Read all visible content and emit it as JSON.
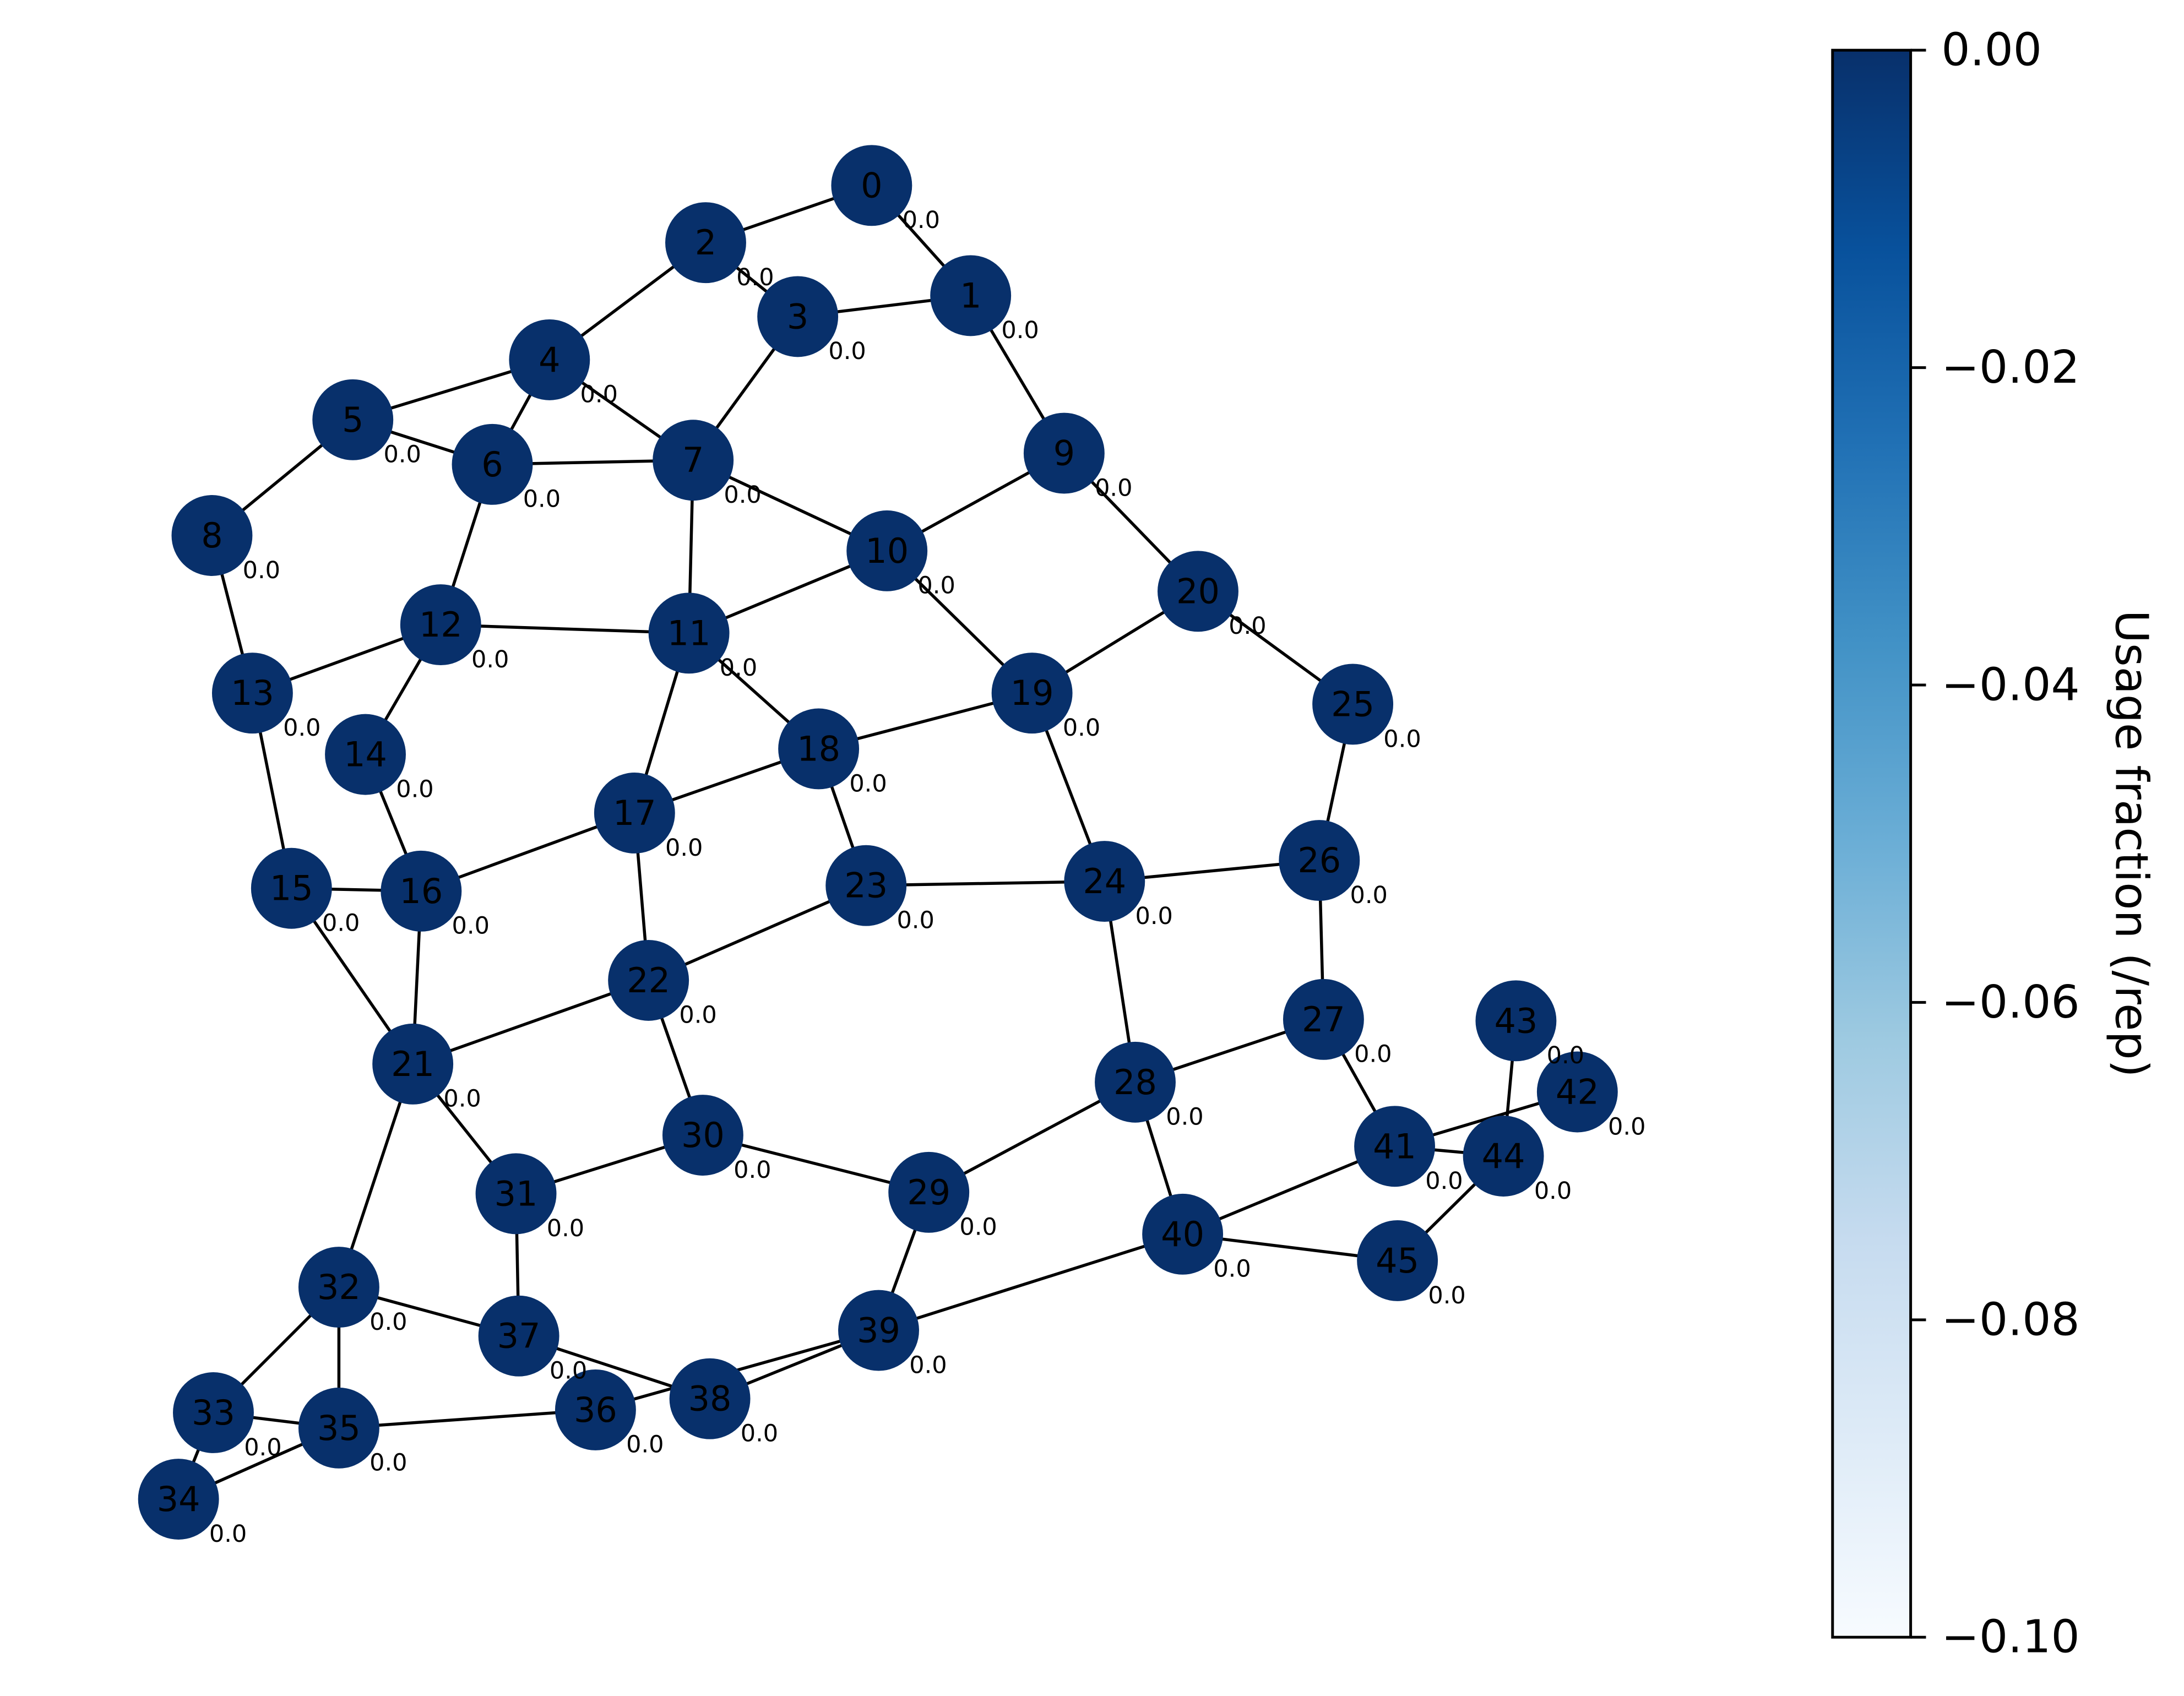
{
  "graph": {
    "node_color": "#08306b",
    "edge_color": "#000000",
    "nodes": [
      {
        "id": "0",
        "value": "0.0"
      },
      {
        "id": "1",
        "value": "0.0"
      },
      {
        "id": "2",
        "value": "0.0"
      },
      {
        "id": "3",
        "value": "0.0"
      },
      {
        "id": "4",
        "value": "0.0"
      },
      {
        "id": "5",
        "value": "0.0"
      },
      {
        "id": "6",
        "value": "0.0"
      },
      {
        "id": "7",
        "value": "0.0"
      },
      {
        "id": "8",
        "value": "0.0"
      },
      {
        "id": "9",
        "value": "0.0"
      },
      {
        "id": "10",
        "value": "0.0"
      },
      {
        "id": "11",
        "value": "0.0"
      },
      {
        "id": "12",
        "value": "0.0"
      },
      {
        "id": "13",
        "value": "0.0"
      },
      {
        "id": "14",
        "value": "0.0"
      },
      {
        "id": "15",
        "value": "0.0"
      },
      {
        "id": "16",
        "value": "0.0"
      },
      {
        "id": "17",
        "value": "0.0"
      },
      {
        "id": "18",
        "value": "0.0"
      },
      {
        "id": "19",
        "value": "0.0"
      },
      {
        "id": "20",
        "value": "0.0"
      },
      {
        "id": "21",
        "value": "0.0"
      },
      {
        "id": "22",
        "value": "0.0"
      },
      {
        "id": "23",
        "value": "0.0"
      },
      {
        "id": "24",
        "value": "0.0"
      },
      {
        "id": "25",
        "value": "0.0"
      },
      {
        "id": "26",
        "value": "0.0"
      },
      {
        "id": "27",
        "value": "0.0"
      },
      {
        "id": "28",
        "value": "0.0"
      },
      {
        "id": "29",
        "value": "0.0"
      },
      {
        "id": "30",
        "value": "0.0"
      },
      {
        "id": "31",
        "value": "0.0"
      },
      {
        "id": "32",
        "value": "0.0"
      },
      {
        "id": "33",
        "value": "0.0"
      },
      {
        "id": "34",
        "value": "0.0"
      },
      {
        "id": "35",
        "value": "0.0"
      },
      {
        "id": "36",
        "value": "0.0"
      },
      {
        "id": "37",
        "value": "0.0"
      },
      {
        "id": "38",
        "value": "0.0"
      },
      {
        "id": "39",
        "value": "0.0"
      },
      {
        "id": "40",
        "value": "0.0"
      },
      {
        "id": "41",
        "value": "0.0"
      },
      {
        "id": "42",
        "value": "0.0"
      },
      {
        "id": "43",
        "value": "0.0"
      },
      {
        "id": "44",
        "value": "0.0"
      },
      {
        "id": "45",
        "value": "0.0"
      }
    ],
    "edges": [
      [
        "0",
        "2"
      ],
      [
        "0",
        "1"
      ],
      [
        "2",
        "3"
      ],
      [
        "3",
        "1"
      ],
      [
        "2",
        "4"
      ],
      [
        "1",
        "9"
      ],
      [
        "3",
        "7"
      ],
      [
        "4",
        "5"
      ],
      [
        "4",
        "6"
      ],
      [
        "4",
        "7"
      ],
      [
        "5",
        "6"
      ],
      [
        "5",
        "8"
      ],
      [
        "6",
        "7"
      ],
      [
        "6",
        "12"
      ],
      [
        "7",
        "11"
      ],
      [
        "7",
        "10"
      ],
      [
        "9",
        "10"
      ],
      [
        "9",
        "20"
      ],
      [
        "10",
        "11"
      ],
      [
        "10",
        "19"
      ],
      [
        "8",
        "13"
      ],
      [
        "12",
        "13"
      ],
      [
        "12",
        "11"
      ],
      [
        "12",
        "14"
      ],
      [
        "11",
        "18"
      ],
      [
        "11",
        "17"
      ],
      [
        "20",
        "19"
      ],
      [
        "20",
        "25"
      ],
      [
        "13",
        "15"
      ],
      [
        "14",
        "16"
      ],
      [
        "18",
        "19"
      ],
      [
        "18",
        "17"
      ],
      [
        "18",
        "23"
      ],
      [
        "19",
        "24"
      ],
      [
        "25",
        "26"
      ],
      [
        "15",
        "16"
      ],
      [
        "15",
        "21"
      ],
      [
        "16",
        "17"
      ],
      [
        "16",
        "21"
      ],
      [
        "17",
        "22"
      ],
      [
        "23",
        "24"
      ],
      [
        "24",
        "26"
      ],
      [
        "24",
        "28"
      ],
      [
        "26",
        "27"
      ],
      [
        "22",
        "23"
      ],
      [
        "21",
        "22"
      ],
      [
        "22",
        "30"
      ],
      [
        "27",
        "28"
      ],
      [
        "27",
        "41"
      ],
      [
        "43",
        "44"
      ],
      [
        "41",
        "42"
      ],
      [
        "41",
        "44"
      ],
      [
        "44",
        "45"
      ],
      [
        "28",
        "29"
      ],
      [
        "28",
        "40"
      ],
      [
        "21",
        "31"
      ],
      [
        "21",
        "32"
      ],
      [
        "30",
        "31"
      ],
      [
        "30",
        "29"
      ],
      [
        "29",
        "39"
      ],
      [
        "40",
        "41"
      ],
      [
        "40",
        "45"
      ],
      [
        "40",
        "39"
      ],
      [
        "31",
        "37"
      ],
      [
        "32",
        "37"
      ],
      [
        "32",
        "33"
      ],
      [
        "32",
        "35"
      ],
      [
        "37",
        "38"
      ],
      [
        "39",
        "38"
      ],
      [
        "39",
        "36"
      ],
      [
        "33",
        "35"
      ],
      [
        "33",
        "34"
      ],
      [
        "35",
        "36"
      ],
      [
        "35",
        "34"
      ]
    ]
  },
  "colorbar": {
    "title": "Usage fraction (/rep)",
    "colormap": "Blues",
    "colors": [
      "#f7fbff",
      "#deebf7",
      "#c6dbef",
      "#9ecae1",
      "#6baed6",
      "#4292c6",
      "#2171b5",
      "#08519c",
      "#08306b"
    ],
    "range": [
      -0.1,
      0.0
    ],
    "ticks": [
      {
        "value": 0.0,
        "label": "0.00"
      },
      {
        "value": -0.02,
        "label": "−0.02"
      },
      {
        "value": -0.04,
        "label": "−0.04"
      },
      {
        "value": -0.06,
        "label": "−0.06"
      },
      {
        "value": -0.08,
        "label": "−0.08"
      },
      {
        "value": -0.1,
        "label": "−0.10"
      }
    ]
  }
}
